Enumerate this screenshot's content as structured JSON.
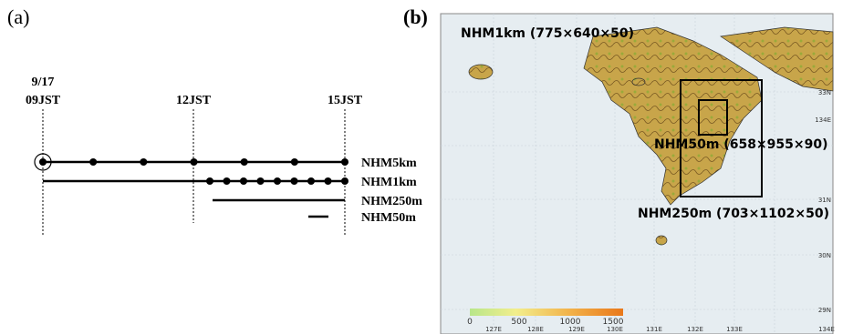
{
  "panel_a": {
    "label": "(a)",
    "date": "9/17",
    "times": [
      "09JST",
      "12JST",
      "15JST"
    ],
    "models": [
      "NHM5km",
      "NHM1km",
      "NHM250m",
      "NHM50m"
    ]
  },
  "panel_b": {
    "label": "(b)",
    "domains": [
      "NHM1km (775×640×50)",
      "NHM50m (658×955×90)",
      "NHM250m (703×1102×50)"
    ],
    "colorbar_ticks": [
      0,
      500,
      1000,
      1500
    ],
    "lon_labels": [
      "127E",
      "128E",
      "129E",
      "130E",
      "131E",
      "132E",
      "133E",
      "134E"
    ],
    "lat_labels": [
      "33N",
      "134E",
      "31N",
      "30N",
      "29N"
    ]
  }
}
